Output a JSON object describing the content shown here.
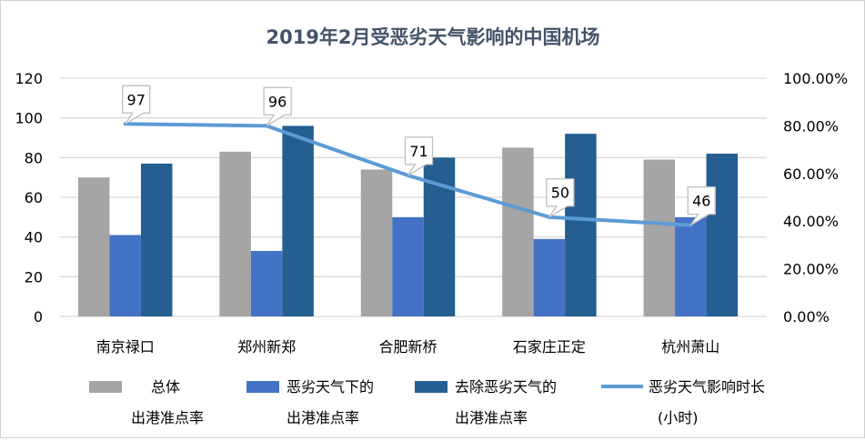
{
  "chart_data": {
    "type": "bar",
    "title": "2019年2月受恶劣天气影响的中国机场",
    "categories": [
      "南京禄口",
      "郑州新郑",
      "合肥新桥",
      "石家庄正定",
      "杭州萧山"
    ],
    "y_left": {
      "range": [
        0,
        120
      ],
      "ticks": [
        "0",
        "20",
        "40",
        "60",
        "80",
        "100",
        "120"
      ]
    },
    "y_right": {
      "range": [
        0,
        100
      ],
      "ticks": [
        "0.00%",
        "20.00%",
        "40.00%",
        "60.00%",
        "80.00%",
        "100.00%"
      ]
    },
    "grid": true,
    "legend_position": "bottom",
    "series": [
      {
        "name": "总体\n出港准点率",
        "name_lines": [
          "总体",
          "出港准点率"
        ],
        "type": "bar",
        "axis": "left",
        "color": "#a5a5a5",
        "values": [
          70,
          83,
          74,
          85,
          79
        ]
      },
      {
        "name": "恶劣天气下的\n出港准点率",
        "name_lines": [
          "恶劣天气下的",
          "出港准点率"
        ],
        "type": "bar",
        "axis": "left",
        "color": "#4472c4",
        "values": [
          41,
          33,
          50,
          39,
          50
        ]
      },
      {
        "name": "去除恶劣天气的\n出港准点率",
        "name_lines": [
          "去除恶劣天气的",
          "出港准点率"
        ],
        "type": "bar",
        "axis": "left",
        "color": "#255e91",
        "values": [
          77,
          96,
          80,
          92,
          82
        ]
      },
      {
        "name": "恶劣天气影响时长\n(小时)",
        "name_lines": [
          "恶劣天气影响时长",
          "(小时)"
        ],
        "type": "line",
        "axis": "right",
        "color": "#5b9bd5",
        "values": [
          80.8,
          80,
          59.2,
          41.7,
          38.3
        ],
        "data_labels": [
          "97",
          "96",
          "71",
          "50",
          "46"
        ]
      }
    ]
  }
}
